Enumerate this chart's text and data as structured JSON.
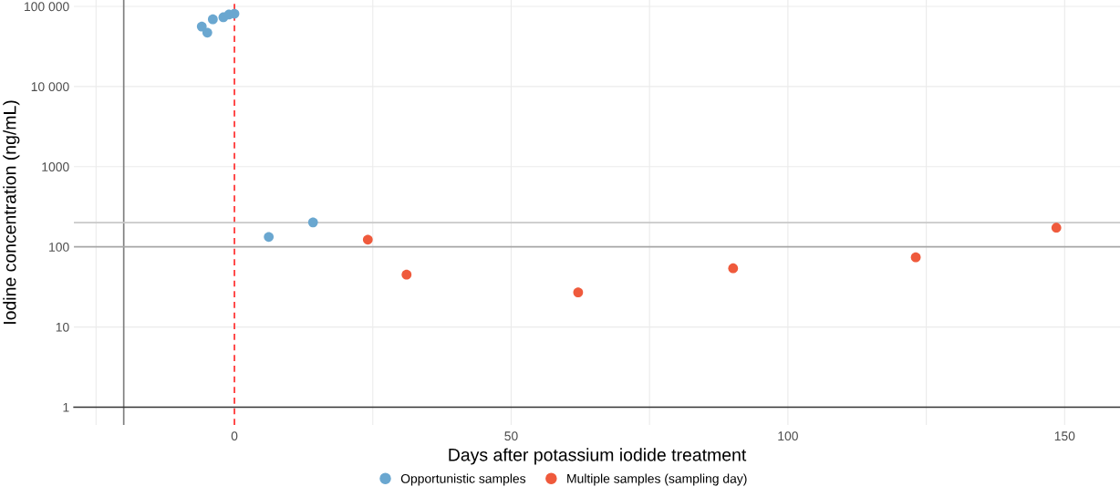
{
  "chart_data": {
    "type": "scatter",
    "xlabel": "Days after potassium iodide treatment",
    "ylabel": "Iodine concentration (ng/mL)",
    "log": "y",
    "xlim": [
      -29,
      160
    ],
    "xticks": [
      {
        "value": -25,
        "label": null
      },
      0,
      {
        "value": 25,
        "label": null
      },
      50,
      {
        "value": 75,
        "label": null
      },
      100,
      {
        "value": 125,
        "label": null
      },
      150
    ],
    "ylim": [
      0.6,
      120000
    ],
    "yticks": [
      1,
      10,
      100,
      1000,
      {
        "value": 10000,
        "label": "10 000"
      },
      {
        "value": 100000,
        "label": "100 000"
      }
    ],
    "grid": true,
    "legend": "bottom",
    "marker": "circle",
    "series": [
      {
        "name": "Opportunistic samples",
        "color": "#6aa7d0",
        "x": [
          -5.9,
          -4.9,
          -3.9,
          -2.0,
          -1.0,
          0,
          6.2,
          14.2
        ],
        "values": [
          56000,
          47000,
          69000,
          73000,
          79000,
          81000,
          133,
          202
        ]
      },
      {
        "name": "Multiple samples (sampling day)",
        "color": "#ef5a3c",
        "x": [
          24.1,
          31.1,
          62.1,
          90.1,
          123.1,
          148.5
        ],
        "values": [
          123,
          45,
          27,
          54,
          74,
          173
        ]
      }
    ],
    "ref_lines": [
      {
        "axis": "x",
        "value": -20,
        "color": "#7f7f7f",
        "line_style": "solid"
      },
      {
        "axis": "x",
        "value": 0,
        "color": "#ff2a2a",
        "line_style": "dashed"
      },
      {
        "axis": "y",
        "value": 100,
        "color": "#a6a6a6",
        "line_style": "solid"
      },
      {
        "axis": "y",
        "value": 200,
        "color": "#c8c8c8",
        "line_style": "solid"
      }
    ]
  }
}
